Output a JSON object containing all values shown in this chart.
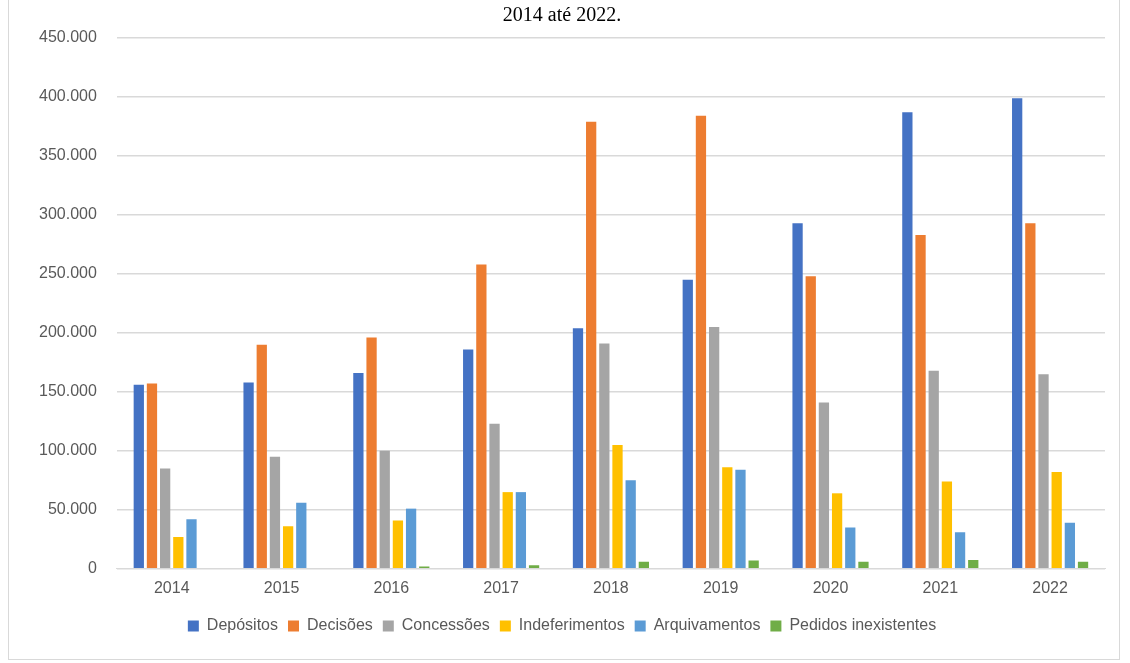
{
  "chart_data": {
    "type": "bar",
    "title": "2014 até 2022.",
    "categories": [
      "2014",
      "2015",
      "2016",
      "2017",
      "2018",
      "2019",
      "2020",
      "2021",
      "2022"
    ],
    "series": [
      {
        "name": "Depósitos",
        "color": "#4472c4",
        "values": [
          156000,
          158000,
          166000,
          186000,
          204000,
          245000,
          293000,
          387000,
          399000
        ]
      },
      {
        "name": "Decisões",
        "color": "#ed7d31",
        "values": [
          157000,
          190000,
          196000,
          258000,
          379000,
          384000,
          248000,
          283000,
          293000
        ]
      },
      {
        "name": "Concessões",
        "color": "#a5a5a5",
        "values": [
          85000,
          95000,
          100000,
          123000,
          191000,
          205000,
          141000,
          168000,
          165000
        ]
      },
      {
        "name": "Indeferimentos",
        "color": "#ffc000",
        "values": [
          27000,
          36000,
          41000,
          65000,
          105000,
          86000,
          64000,
          74000,
          82000
        ]
      },
      {
        "name": "Arquivamentos",
        "color": "#5b9bd5",
        "values": [
          42000,
          56000,
          51000,
          65000,
          75000,
          84000,
          35000,
          31000,
          39000
        ]
      },
      {
        "name": "Pedidos inexistentes",
        "color": "#70ad47",
        "values": [
          null,
          null,
          2000,
          3000,
          6000,
          7000,
          6000,
          7500,
          6000
        ]
      }
    ],
    "ylim": [
      0,
      450000
    ],
    "yticks": [
      0,
      {
        "value": 50000,
        "label": "50.000"
      },
      {
        "value": 100000,
        "label": "100.000"
      },
      {
        "value": 150000,
        "label": "150.000"
      },
      {
        "value": 200000,
        "label": "200.000"
      },
      {
        "value": 250000,
        "label": "250.000"
      },
      {
        "value": 300000,
        "label": "300.000"
      },
      {
        "value": 350000,
        "label": "350.000"
      },
      {
        "value": 400000,
        "label": "400.000"
      },
      {
        "value": 450000,
        "label": "450.000"
      }
    ],
    "grid": "y",
    "legend": "bottom"
  }
}
